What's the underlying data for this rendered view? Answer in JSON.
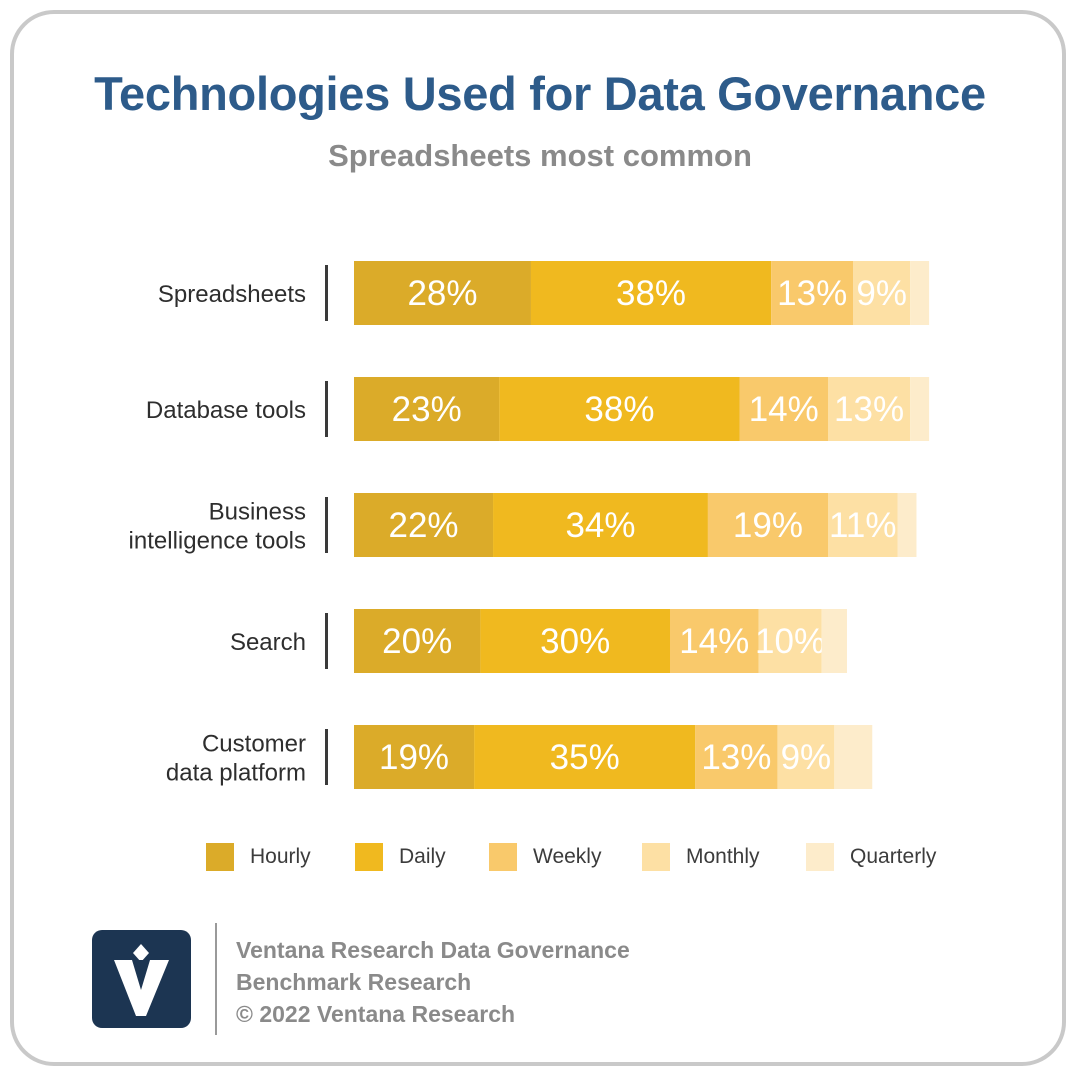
{
  "title": "Technologies Used for Data Governance",
  "subtitle": "Spreadsheets most common",
  "colors": {
    "Hourly": "#dbab29",
    "Daily": "#f0b91f",
    "Weekly": "#f9c96b",
    "Monthly": "#fde0a4",
    "Quarterly": "#fdeccb"
  },
  "chart_data": {
    "type": "bar",
    "orientation": "horizontal",
    "stacked": true,
    "title": "Technologies Used for Data Governance",
    "subtitle": "Spreadsheets most common",
    "categories": [
      [
        "Spreadsheets"
      ],
      [
        "Database tools"
      ],
      [
        "Business",
        "intelligence tools"
      ],
      [
        "Search"
      ],
      [
        "Customer",
        "data platform"
      ]
    ],
    "series": [
      {
        "name": "Hourly",
        "values": [
          28,
          23,
          22,
          20,
          19
        ]
      },
      {
        "name": "Daily",
        "values": [
          38,
          38,
          34,
          30,
          35
        ]
      },
      {
        "name": "Weekly",
        "values": [
          13,
          14,
          19,
          14,
          13
        ]
      },
      {
        "name": "Monthly",
        "values": [
          9,
          13,
          11,
          10,
          9
        ]
      },
      {
        "name": "Quarterly",
        "values": [
          3,
          3,
          3,
          4,
          6
        ]
      }
    ],
    "data_labels": [
      [
        "28%",
        "38%",
        "13%",
        "9%",
        ""
      ],
      [
        "23%",
        "38%",
        "14%",
        "13%",
        ""
      ],
      [
        "22%",
        "34%",
        "19%",
        "11%",
        ""
      ],
      [
        "20%",
        "30%",
        "14%",
        "10%",
        ""
      ],
      [
        "19%",
        "35%",
        "13%",
        "9%",
        ""
      ]
    ],
    "xlim": [
      0,
      100
    ],
    "legend_position": "bottom"
  },
  "legend": {
    "items": [
      "Hourly",
      "Daily",
      "Weekly",
      "Monthly",
      "Quarterly"
    ]
  },
  "footer": {
    "line1": "Ventana Research Data Governance",
    "line2": "Benchmark Research",
    "line3": "© 2022 Ventana Research",
    "logo_icon": "ventana-v-logo-icon"
  }
}
